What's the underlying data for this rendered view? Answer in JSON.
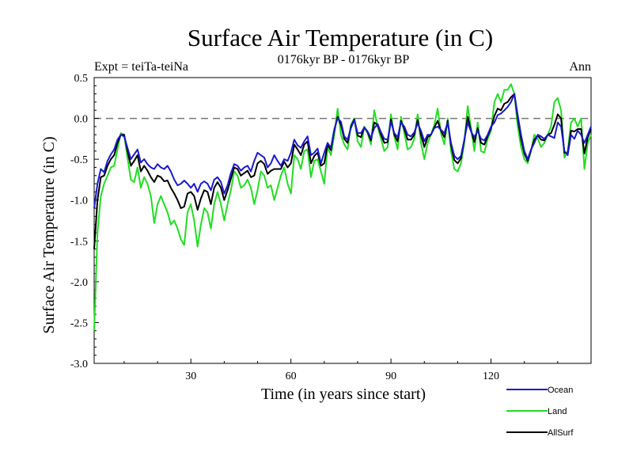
{
  "chart_data": {
    "type": "line",
    "title": "Surface Air Temperature (in C)",
    "subtitle_left": "Expt = teiTa-teiNa",
    "subtitle_center": "0176kyr BP - 0176kyr BP",
    "subtitle_right": "Ann",
    "xlabel": "Time (in years since start)",
    "ylabel": "Surface Air Temperature (in C)",
    "xlim": [
      1,
      150
    ],
    "ylim": [
      -3.0,
      0.5
    ],
    "xticks": [
      30,
      60,
      90,
      120
    ],
    "xtick_labels": [
      "30",
      "60",
      "90",
      "120"
    ],
    "yticks": [
      0.5,
      0.0,
      -0.5,
      -1.0,
      -1.5,
      -2.0,
      -2.5,
      -3.0
    ],
    "ytick_labels": [
      "0.5",
      "0.0",
      "-0.5",
      "-1.0",
      "-1.5",
      "-2.0",
      "-2.5",
      "-3.0"
    ],
    "reference_line": 0.0,
    "x": [
      1,
      2,
      3,
      4,
      5,
      6,
      7,
      8,
      9,
      10,
      11,
      12,
      13,
      14,
      15,
      16,
      17,
      18,
      19,
      20,
      21,
      22,
      23,
      24,
      25,
      26,
      27,
      28,
      29,
      30,
      31,
      32,
      33,
      34,
      35,
      36,
      37,
      38,
      39,
      40,
      41,
      42,
      43,
      44,
      45,
      46,
      47,
      48,
      49,
      50,
      51,
      52,
      53,
      54,
      55,
      56,
      57,
      58,
      59,
      60,
      61,
      62,
      63,
      64,
      65,
      66,
      67,
      68,
      69,
      70,
      71,
      72,
      73,
      74,
      75,
      76,
      77,
      78,
      79,
      80,
      81,
      82,
      83,
      84,
      85,
      86,
      87,
      88,
      89,
      90,
      91,
      92,
      93,
      94,
      95,
      96,
      97,
      98,
      99,
      100,
      101,
      102,
      103,
      104,
      105,
      106,
      107,
      108,
      109,
      110,
      111,
      112,
      113,
      114,
      115,
      116,
      117,
      118,
      119,
      120,
      121,
      122,
      123,
      124,
      125,
      126,
      127,
      128,
      129,
      130,
      131,
      132,
      133,
      134,
      135,
      136,
      137,
      138,
      139,
      140,
      141,
      142,
      143,
      144,
      145,
      146,
      147,
      148,
      149,
      150
    ],
    "series": [
      {
        "name": "Ocean",
        "color": "#1a1acc",
        "values": [
          -1.1,
          -0.8,
          -0.62,
          -0.66,
          -0.52,
          -0.44,
          -0.38,
          -0.26,
          -0.2,
          -0.22,
          -0.36,
          -0.5,
          -0.44,
          -0.38,
          -0.54,
          -0.5,
          -0.56,
          -0.6,
          -0.62,
          -0.56,
          -0.6,
          -0.62,
          -0.58,
          -0.65,
          -0.75,
          -0.82,
          -0.8,
          -0.76,
          -0.8,
          -0.85,
          -0.8,
          -0.9,
          -0.8,
          -0.77,
          -0.8,
          -0.88,
          -0.75,
          -0.72,
          -0.78,
          -0.92,
          -0.82,
          -0.67,
          -0.56,
          -0.58,
          -0.64,
          -0.6,
          -0.58,
          -0.65,
          -0.52,
          -0.42,
          -0.45,
          -0.48,
          -0.6,
          -0.55,
          -0.45,
          -0.52,
          -0.58,
          -0.5,
          -0.52,
          -0.42,
          -0.26,
          -0.33,
          -0.36,
          -0.28,
          -0.22,
          -0.45,
          -0.42,
          -0.37,
          -0.55,
          -0.42,
          -0.3,
          -0.36,
          -0.13,
          0.0,
          -0.04,
          -0.22,
          -0.26,
          -0.12,
          -0.02,
          -0.18,
          -0.18,
          -0.11,
          -0.16,
          -0.24,
          -0.12,
          -0.07,
          -0.17,
          -0.25,
          -0.26,
          -0.04,
          -0.18,
          -0.23,
          -0.05,
          -0.1,
          -0.2,
          -0.22,
          -0.17,
          -0.06,
          -0.15,
          -0.28,
          -0.2,
          -0.2,
          -0.12,
          -0.1,
          -0.14,
          -0.18,
          -0.05,
          -0.3,
          -0.46,
          -0.5,
          -0.46,
          -0.26,
          -0.05,
          -0.16,
          -0.23,
          -0.15,
          -0.25,
          -0.27,
          -0.2,
          -0.1,
          -0.05,
          0.04,
          0.06,
          0.1,
          0.14,
          0.2,
          0.3,
          0.04,
          -0.2,
          -0.4,
          -0.5,
          -0.38,
          -0.3,
          -0.2,
          -0.22,
          -0.25,
          -0.2,
          -0.22,
          -0.24,
          -0.05,
          -0.1,
          -0.4,
          -0.45,
          -0.2,
          -0.25,
          -0.15,
          -0.2,
          -0.3,
          -0.2,
          -0.1
        ]
      },
      {
        "name": "Land",
        "color": "#22dd22",
        "values": [
          -2.6,
          -1.4,
          -0.95,
          -0.8,
          -0.7,
          -0.6,
          -0.58,
          -0.38,
          -0.18,
          -0.2,
          -0.48,
          -0.75,
          -0.78,
          -0.6,
          -0.85,
          -0.72,
          -0.8,
          -0.95,
          -1.28,
          -1.05,
          -0.95,
          -1.05,
          -1.15,
          -1.3,
          -1.25,
          -1.35,
          -1.48,
          -1.55,
          -1.15,
          -1.05,
          -1.25,
          -1.57,
          -1.3,
          -1.1,
          -1.15,
          -1.35,
          -1.05,
          -0.9,
          -1.05,
          -1.25,
          -1.05,
          -0.88,
          -0.65,
          -0.7,
          -0.85,
          -0.82,
          -0.75,
          -0.85,
          -1.05,
          -0.88,
          -0.65,
          -0.7,
          -0.85,
          -0.82,
          -1.0,
          -0.85,
          -0.7,
          -0.6,
          -0.8,
          -0.92,
          -0.45,
          -0.5,
          -0.62,
          -0.4,
          -0.38,
          -0.72,
          -0.52,
          -0.5,
          -0.65,
          -0.8,
          -0.35,
          -0.45,
          -0.2,
          0.12,
          -0.2,
          -0.32,
          -0.38,
          -0.08,
          0.0,
          -0.28,
          -0.35,
          -0.1,
          -0.18,
          -0.32,
          0.1,
          -0.1,
          -0.25,
          -0.4,
          -0.35,
          0.05,
          -0.22,
          -0.38,
          0.02,
          -0.18,
          -0.38,
          -0.35,
          -0.25,
          0.05,
          -0.3,
          -0.5,
          -0.3,
          -0.2,
          -0.08,
          0.12,
          -0.18,
          -0.32,
          0.0,
          -0.4,
          -0.62,
          -0.65,
          -0.55,
          -0.3,
          0.15,
          -0.12,
          -0.4,
          -0.05,
          -0.4,
          -0.42,
          -0.25,
          -0.15,
          0.2,
          0.3,
          0.2,
          0.35,
          0.35,
          0.42,
          0.3,
          -0.1,
          -0.35,
          -0.5,
          -0.55,
          -0.4,
          -0.2,
          -0.25,
          -0.35,
          -0.3,
          -0.2,
          -0.1,
          0.2,
          0.25,
          0.1,
          -0.48,
          -0.4,
          -0.05,
          0.0,
          -0.1,
          0.0,
          -0.62,
          -0.3,
          -0.2
        ]
      },
      {
        "name": "AllSurf",
        "color": "#000000",
        "values": [
          -1.6,
          -1.0,
          -0.72,
          -0.7,
          -0.58,
          -0.5,
          -0.45,
          -0.3,
          -0.2,
          -0.2,
          -0.4,
          -0.58,
          -0.52,
          -0.45,
          -0.65,
          -0.58,
          -0.64,
          -0.72,
          -0.78,
          -0.7,
          -0.72,
          -0.77,
          -0.76,
          -0.85,
          -0.92,
          -1.0,
          -1.1,
          -1.08,
          -0.92,
          -0.9,
          -0.95,
          -1.12,
          -0.98,
          -0.88,
          -0.9,
          -1.05,
          -0.85,
          -0.78,
          -0.85,
          -1.0,
          -0.88,
          -0.74,
          -0.6,
          -0.62,
          -0.7,
          -0.67,
          -0.64,
          -0.72,
          -0.7,
          -0.55,
          -0.52,
          -0.56,
          -0.68,
          -0.64,
          -0.62,
          -0.62,
          -0.62,
          -0.53,
          -0.6,
          -0.55,
          -0.32,
          -0.38,
          -0.45,
          -0.32,
          -0.28,
          -0.55,
          -0.46,
          -0.42,
          -0.58,
          -0.55,
          -0.32,
          -0.39,
          -0.15,
          0.02,
          -0.08,
          -0.25,
          -0.3,
          -0.1,
          -0.01,
          -0.21,
          -0.23,
          -0.11,
          -0.17,
          -0.27,
          -0.05,
          -0.08,
          -0.2,
          -0.3,
          -0.29,
          -0.01,
          -0.2,
          -0.28,
          -0.03,
          -0.13,
          -0.26,
          -0.26,
          -0.2,
          -0.02,
          -0.2,
          -0.35,
          -0.23,
          -0.2,
          -0.11,
          -0.03,
          -0.15,
          -0.23,
          -0.03,
          -0.33,
          -0.51,
          -0.55,
          -0.49,
          -0.27,
          0.02,
          -0.15,
          -0.29,
          -0.12,
          -0.3,
          -0.32,
          -0.22,
          -0.12,
          0.03,
          0.12,
          0.1,
          0.18,
          0.2,
          0.26,
          0.3,
          0.0,
          -0.25,
          -0.43,
          -0.52,
          -0.39,
          -0.26,
          -0.21,
          -0.26,
          -0.27,
          -0.2,
          -0.18,
          -0.08,
          0.05,
          0.0,
          -0.42,
          -0.43,
          -0.15,
          -0.16,
          -0.13,
          -0.13,
          -0.43,
          -0.23,
          -0.13
        ]
      }
    ],
    "legend": [
      {
        "name": "Ocean",
        "color": "#1a1acc"
      },
      {
        "name": "Land",
        "color": "#22dd22"
      },
      {
        "name": "AllSurf",
        "color": "#000000"
      }
    ],
    "legend_position": "bottom-right"
  }
}
